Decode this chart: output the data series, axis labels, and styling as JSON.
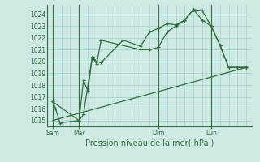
{
  "xlabel": "Pression niveau de la mer( hPa )",
  "background_color": "#ceeae4",
  "grid_color": "#aad4cc",
  "line_color": "#2d6e3a",
  "ylim": [
    1014.5,
    1024.8
  ],
  "xlim": [
    -4,
    136
  ],
  "yticks": [
    1015,
    1016,
    1017,
    1018,
    1019,
    1020,
    1021,
    1022,
    1023,
    1024
  ],
  "day_labels": [
    "Sam",
    "Mar",
    "Dim",
    "Lun"
  ],
  "day_positions": [
    0,
    18,
    72,
    108
  ],
  "vline_positions": [
    0,
    18,
    72,
    108
  ],
  "series1_x": [
    0,
    2,
    5,
    18,
    21,
    24,
    27,
    30,
    33,
    60,
    66,
    72,
    78,
    84,
    90,
    96,
    102,
    108,
    114,
    120,
    126,
    132
  ],
  "series1_y": [
    1016.6,
    1016.0,
    1014.8,
    1015.0,
    1018.4,
    1017.5,
    1020.4,
    1019.8,
    1021.8,
    1021.0,
    1021.0,
    1021.2,
    1022.5,
    1023.0,
    1023.5,
    1024.4,
    1023.5,
    1023.0,
    1021.4,
    1019.5,
    1019.5,
    1019.5
  ],
  "series2_x": [
    0,
    18,
    21,
    27,
    30,
    33,
    48,
    60,
    66,
    72,
    78,
    84,
    90,
    96,
    102,
    108,
    114,
    120,
    126,
    132
  ],
  "series2_y": [
    1016.6,
    1015.0,
    1015.5,
    1020.4,
    1020.0,
    1019.9,
    1021.8,
    1021.3,
    1022.5,
    1022.8,
    1023.2,
    1023.1,
    1023.5,
    1024.4,
    1024.3,
    1023.0,
    1021.4,
    1019.5,
    1019.5,
    1019.5
  ],
  "series3_x": [
    0,
    132
  ],
  "series3_y": [
    1015.0,
    1019.5
  ],
  "ylabel_fontsize": 5.5,
  "xlabel_fontsize": 7,
  "tick_fontsize": 5.5
}
